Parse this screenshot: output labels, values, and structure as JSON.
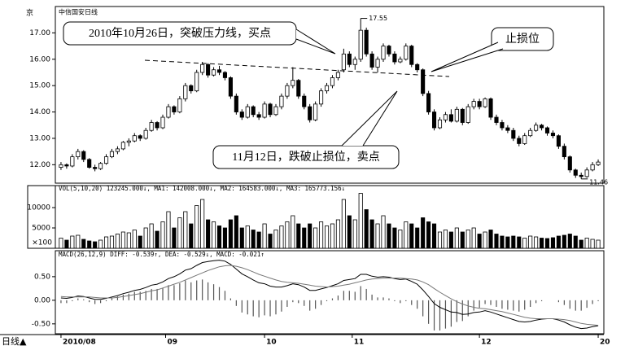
{
  "chart_data": {
    "type": "candlestick",
    "title": "中信国安日线",
    "corner_label": "京",
    "period_label": "日线▲",
    "up_color": "#ffffff",
    "down_color": "#000000",
    "xlim": [
      -1,
      96
    ],
    "xticks": [
      {
        "value": 0,
        "label": "2010/08"
      },
      {
        "value": 18.5,
        "label": "09"
      },
      {
        "value": 36,
        "label": "10"
      },
      {
        "value": 51.5,
        "label": "11"
      },
      {
        "value": 74,
        "label": "12"
      },
      {
        "value": 95,
        "label": "20"
      }
    ],
    "ylim": [
      11.3,
      18.0
    ],
    "yticks": [
      {
        "value": 12,
        "label": "12.00"
      },
      {
        "value": 13,
        "label": "13.00"
      },
      {
        "value": 14,
        "label": "14.00"
      },
      {
        "value": 15,
        "label": "15.00"
      },
      {
        "value": 16,
        "label": "16.00"
      },
      {
        "value": 17,
        "label": "17.00"
      }
    ],
    "ohlc": [
      [
        11.9,
        12.1,
        11.8,
        12.0
      ],
      [
        12.0,
        12.05,
        11.85,
        11.95
      ],
      [
        11.95,
        12.4,
        11.9,
        12.3
      ],
      [
        12.3,
        12.6,
        12.2,
        12.5
      ],
      [
        12.5,
        12.55,
        12.1,
        12.2
      ],
      [
        12.2,
        12.25,
        11.85,
        11.9
      ],
      [
        11.9,
        12.0,
        11.75,
        11.85
      ],
      [
        11.85,
        12.1,
        11.8,
        12.05
      ],
      [
        12.05,
        12.4,
        12.0,
        12.3
      ],
      [
        12.3,
        12.6,
        12.25,
        12.5
      ],
      [
        12.5,
        12.7,
        12.4,
        12.6
      ],
      [
        12.6,
        12.9,
        12.55,
        12.85
      ],
      [
        12.85,
        13.0,
        12.7,
        12.9
      ],
      [
        12.9,
        13.2,
        12.85,
        13.1
      ],
      [
        13.1,
        13.15,
        12.9,
        13.0
      ],
      [
        13.0,
        13.4,
        12.95,
        13.3
      ],
      [
        13.3,
        13.7,
        13.25,
        13.6
      ],
      [
        13.6,
        13.65,
        13.3,
        13.4
      ],
      [
        13.4,
        13.9,
        13.35,
        13.8
      ],
      [
        13.8,
        14.3,
        13.75,
        14.2
      ],
      [
        14.2,
        14.25,
        13.9,
        14.0
      ],
      [
        14.0,
        14.6,
        13.95,
        14.5
      ],
      [
        14.5,
        15.1,
        14.4,
        15.0
      ],
      [
        15.0,
        15.05,
        14.7,
        14.8
      ],
      [
        14.8,
        15.6,
        14.75,
        15.5
      ],
      [
        15.5,
        15.9,
        15.4,
        15.8
      ],
      [
        15.8,
        15.85,
        15.3,
        15.4
      ],
      [
        15.4,
        15.7,
        15.35,
        15.6
      ],
      [
        15.6,
        15.75,
        15.4,
        15.5
      ],
      [
        15.5,
        15.55,
        15.2,
        15.3
      ],
      [
        15.3,
        15.35,
        14.5,
        14.6
      ],
      [
        14.6,
        14.7,
        13.9,
        14.0
      ],
      [
        14.0,
        14.1,
        13.7,
        13.8
      ],
      [
        13.8,
        14.3,
        13.75,
        14.2
      ],
      [
        14.2,
        14.25,
        13.8,
        13.9
      ],
      [
        13.9,
        14.0,
        13.7,
        13.8
      ],
      [
        13.8,
        14.4,
        13.75,
        14.3
      ],
      [
        14.3,
        14.35,
        13.8,
        13.9
      ],
      [
        13.9,
        14.3,
        13.85,
        14.2
      ],
      [
        14.2,
        14.7,
        14.1,
        14.6
      ],
      [
        14.6,
        15.1,
        14.5,
        15.0
      ],
      [
        15.0,
        15.7,
        14.9,
        15.2
      ],
      [
        15.2,
        15.25,
        14.5,
        14.6
      ],
      [
        14.6,
        14.7,
        14.1,
        14.2
      ],
      [
        14.2,
        14.3,
        13.6,
        13.7
      ],
      [
        13.7,
        14.4,
        13.65,
        14.3
      ],
      [
        14.3,
        14.9,
        14.2,
        14.8
      ],
      [
        14.8,
        15.1,
        14.7,
        15.0
      ],
      [
        15.0,
        15.4,
        14.9,
        15.3
      ],
      [
        15.3,
        15.6,
        15.2,
        15.5
      ],
      [
        15.6,
        16.4,
        15.5,
        16.2
      ],
      [
        16.2,
        16.3,
        15.7,
        15.8
      ],
      [
        15.8,
        16.1,
        15.6,
        16.0
      ],
      [
        16.0,
        17.55,
        15.9,
        17.1
      ],
      [
        17.1,
        17.2,
        16.1,
        16.2
      ],
      [
        16.2,
        16.3,
        15.6,
        15.7
      ],
      [
        15.7,
        16.1,
        15.5,
        16.0
      ],
      [
        16.0,
        16.6,
        15.9,
        16.5
      ],
      [
        16.5,
        16.55,
        16.1,
        16.2
      ],
      [
        16.2,
        16.3,
        15.8,
        15.9
      ],
      [
        15.9,
        16.1,
        15.85,
        16.0
      ],
      [
        16.0,
        16.6,
        15.95,
        16.5
      ],
      [
        16.5,
        16.55,
        15.7,
        15.8
      ],
      [
        15.8,
        15.85,
        15.5,
        15.6
      ],
      [
        15.6,
        15.65,
        14.6,
        14.7
      ],
      [
        14.7,
        14.8,
        13.9,
        14.0
      ],
      [
        14.0,
        14.1,
        13.3,
        13.4
      ],
      [
        13.4,
        13.8,
        13.35,
        13.7
      ],
      [
        13.7,
        14.0,
        13.6,
        13.9
      ],
      [
        13.9,
        14.1,
        13.6,
        13.65
      ],
      [
        13.65,
        14.2,
        13.6,
        14.1
      ],
      [
        14.1,
        14.15,
        13.5,
        13.6
      ],
      [
        13.6,
        14.3,
        13.55,
        14.2
      ],
      [
        14.2,
        14.5,
        14.1,
        14.4
      ],
      [
        14.4,
        14.5,
        14.1,
        14.2
      ],
      [
        14.2,
        14.55,
        14.15,
        14.5
      ],
      [
        14.5,
        14.55,
        13.7,
        13.8
      ],
      [
        13.8,
        13.9,
        13.5,
        13.6
      ],
      [
        13.6,
        13.7,
        13.3,
        13.4
      ],
      [
        13.4,
        13.5,
        13.2,
        13.3
      ],
      [
        13.3,
        13.4,
        12.9,
        13.0
      ],
      [
        13.0,
        13.1,
        12.7,
        12.8
      ],
      [
        12.8,
        13.2,
        12.75,
        13.1
      ],
      [
        13.1,
        13.4,
        13.05,
        13.3
      ],
      [
        13.3,
        13.6,
        13.25,
        13.5
      ],
      [
        13.5,
        13.55,
        13.3,
        13.4
      ],
      [
        13.4,
        13.45,
        13.1,
        13.2
      ],
      [
        13.2,
        13.3,
        13.0,
        13.1
      ],
      [
        13.1,
        13.15,
        12.6,
        12.7
      ],
      [
        12.7,
        12.8,
        12.2,
        12.3
      ],
      [
        12.3,
        12.35,
        11.7,
        11.8
      ],
      [
        11.8,
        11.85,
        11.5,
        11.6
      ],
      [
        11.6,
        11.7,
        11.46,
        11.55
      ],
      [
        11.55,
        11.9,
        11.5,
        11.8
      ],
      [
        11.8,
        12.1,
        11.75,
        12.0
      ],
      [
        12.0,
        12.2,
        11.95,
        12.1
      ]
    ],
    "high_label": {
      "index": 53,
      "label": "17.55"
    },
    "low_label": {
      "index": 92,
      "label": "11.46"
    },
    "annotations": [
      "2010年10月26日，突破压力线，买点",
      "止损位",
      "11月12日，跌破止损位，卖点"
    ],
    "volume": {
      "legend": "VOL(5,10,20) 123245.000↓, MA1: 142008.000↓, MA2: 164583.000↓, MA3: 165773.156↓",
      "unit": "×100",
      "ylim": [
        0,
        15400
      ],
      "yticks": [
        5000,
        10000
      ],
      "values": [
        2500,
        2000,
        3000,
        3200,
        2200,
        1800,
        1600,
        2000,
        2800,
        3000,
        3500,
        4000,
        3800,
        4500,
        3000,
        5000,
        6000,
        4200,
        6500,
        9000,
        5000,
        7500,
        9000,
        6000,
        10500,
        12000,
        7000,
        6500,
        5500,
        5000,
        7000,
        8000,
        5000,
        5500,
        4500,
        4000,
        6000,
        3500,
        4500,
        5500,
        6500,
        8000,
        6000,
        5000,
        6000,
        5000,
        6500,
        5500,
        6000,
        7000,
        12000,
        8000,
        7000,
        13500,
        9500,
        7000,
        6000,
        8000,
        6000,
        5000,
        4500,
        6500,
        6000,
        5000,
        7500,
        6500,
        6000,
        4000,
        4500,
        4000,
        5000,
        4000,
        4500,
        5000,
        3500,
        4000,
        4500,
        3500,
        3000,
        2800,
        3000,
        2800,
        2500,
        3000,
        2800,
        2500,
        2400,
        2600,
        3000,
        3200,
        3500,
        3000,
        2000,
        2500,
        2200,
        2000
      ]
    },
    "macd": {
      "legend": "MACD(26,12,9) DIFF: -0.539↑, DEA: -0.529↓, MACD: -0.021↑",
      "ylim": [
        -0.71,
        1.05
      ],
      "yticks": [
        {
          "value": -0.5,
          "label": "-0.50"
        },
        {
          "value": 0,
          "label": "0.00"
        },
        {
          "value": 0.5,
          "label": "0.50"
        }
      ],
      "diff_color": "#000000",
      "dea_color": "#777777",
      "hist": [
        -0.06,
        -0.06,
        -0.02,
        0.04,
        0.02,
        -0.04,
        -0.08,
        -0.06,
        -0.02,
        0.04,
        0.08,
        0.12,
        0.14,
        0.18,
        0.18,
        0.2,
        0.24,
        0.24,
        0.26,
        0.32,
        0.32,
        0.36,
        0.42,
        0.38,
        0.42,
        0.44,
        0.38,
        0.34,
        0.28,
        0.2,
        0.04,
        -0.12,
        -0.26,
        -0.3,
        -0.34,
        -0.36,
        -0.32,
        -0.34,
        -0.3,
        -0.24,
        -0.14,
        -0.04,
        -0.06,
        -0.12,
        -0.22,
        -0.18,
        -0.1,
        -0.02,
        0.04,
        0.1,
        0.2,
        0.2,
        0.18,
        0.3,
        0.24,
        0.12,
        0.06,
        0.06,
        0.04,
        -0.02,
        -0.06,
        -0.02,
        -0.1,
        -0.18,
        -0.34,
        -0.5,
        -0.64,
        -0.64,
        -0.6,
        -0.56,
        -0.46,
        -0.44,
        -0.34,
        -0.22,
        -0.16,
        -0.08,
        -0.1,
        -0.14,
        -0.18,
        -0.2,
        -0.22,
        -0.24,
        -0.2,
        -0.14,
        -0.06,
        -0.02,
        0,
        0,
        -0.04,
        -0.1,
        -0.18,
        -0.22,
        -0.22,
        -0.16,
        -0.08,
        -0.02
      ],
      "diff": [
        0.05,
        0.04,
        0.06,
        0.09,
        0.08,
        0.05,
        0.02,
        0.02,
        0.04,
        0.07,
        0.1,
        0.14,
        0.17,
        0.21,
        0.23,
        0.27,
        0.32,
        0.34,
        0.39,
        0.46,
        0.5,
        0.56,
        0.64,
        0.67,
        0.74,
        0.8,
        0.82,
        0.84,
        0.85,
        0.83,
        0.76,
        0.66,
        0.56,
        0.5,
        0.43,
        0.37,
        0.35,
        0.3,
        0.28,
        0.28,
        0.31,
        0.35,
        0.33,
        0.28,
        0.21,
        0.21,
        0.24,
        0.27,
        0.31,
        0.35,
        0.42,
        0.44,
        0.46,
        0.55,
        0.55,
        0.51,
        0.49,
        0.5,
        0.49,
        0.46,
        0.44,
        0.45,
        0.4,
        0.34,
        0.22,
        0.08,
        -0.07,
        -0.15,
        -0.2,
        -0.25,
        -0.26,
        -0.3,
        -0.29,
        -0.26,
        -0.25,
        -0.22,
        -0.25,
        -0.29,
        -0.33,
        -0.37,
        -0.41,
        -0.45,
        -0.46,
        -0.45,
        -0.42,
        -0.4,
        -0.39,
        -0.39,
        -0.42,
        -0.46,
        -0.52,
        -0.57,
        -0.6,
        -0.59,
        -0.56,
        -0.54
      ],
      "dea": [
        0.08,
        0.07,
        0.07,
        0.07,
        0.07,
        0.07,
        0.06,
        0.05,
        0.05,
        0.05,
        0.06,
        0.08,
        0.1,
        0.12,
        0.14,
        0.17,
        0.2,
        0.22,
        0.26,
        0.3,
        0.34,
        0.38,
        0.43,
        0.48,
        0.53,
        0.58,
        0.63,
        0.67,
        0.71,
        0.73,
        0.74,
        0.72,
        0.69,
        0.65,
        0.6,
        0.55,
        0.51,
        0.47,
        0.43,
        0.4,
        0.38,
        0.37,
        0.36,
        0.34,
        0.32,
        0.3,
        0.29,
        0.28,
        0.29,
        0.3,
        0.32,
        0.34,
        0.37,
        0.4,
        0.43,
        0.45,
        0.46,
        0.47,
        0.47,
        0.47,
        0.47,
        0.46,
        0.45,
        0.43,
        0.39,
        0.33,
        0.25,
        0.17,
        0.1,
        0.03,
        -0.03,
        -0.08,
        -0.12,
        -0.15,
        -0.17,
        -0.18,
        -0.2,
        -0.22,
        -0.24,
        -0.27,
        -0.3,
        -0.33,
        -0.36,
        -0.38,
        -0.39,
        -0.39,
        -0.39,
        -0.39,
        -0.4,
        -0.41,
        -0.43,
        -0.46,
        -0.49,
        -0.51,
        -0.52,
        -0.53
      ]
    }
  }
}
